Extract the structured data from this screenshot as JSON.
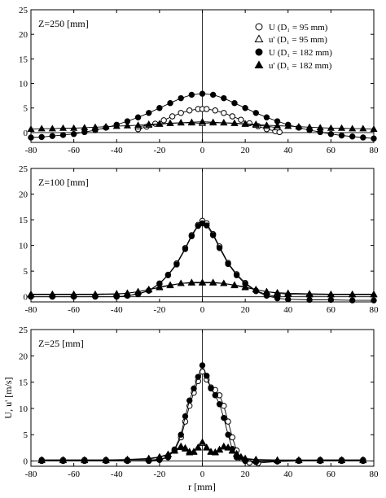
{
  "figure": {
    "shared_xlabel": "r  [mm]",
    "shared_ylabel": "U, u'  [m/s]",
    "legend": [
      {
        "name": "U (D₁ = 95 mm)",
        "marker": "open-circle"
      },
      {
        "name": "u' (D₁ = 95 mm)",
        "marker": "open-triangle"
      },
      {
        "name": "U (D₁ = 182 mm)",
        "marker": "filled-circle"
      },
      {
        "name": "u' (D₁ = 182 mm)",
        "marker": "filled-triangle"
      }
    ],
    "colors": {
      "ink": "#000000",
      "background": "#ffffff"
    }
  },
  "chart_data": [
    {
      "type": "scatter",
      "annotation": "Z=250  [mm]",
      "xlim": [
        -80,
        80
      ],
      "ylim": [
        -2,
        25
      ],
      "xticks": [
        -80,
        -60,
        -40,
        -20,
        0,
        20,
        40,
        60,
        80
      ],
      "yticks": [
        0,
        5,
        10,
        15,
        20,
        25
      ],
      "legend_position": "top-right",
      "series": [
        {
          "name": "U (D₁ = 95 mm)",
          "marker": "open-circle",
          "x": [
            -30,
            -26,
            -22,
            -18,
            -14,
            -10,
            -6,
            -2,
            0,
            2,
            6,
            10,
            14,
            18,
            22,
            26,
            30,
            34,
            36
          ],
          "y": [
            0.7,
            1.2,
            1.8,
            2.5,
            3.3,
            4.0,
            4.5,
            4.8,
            4.8,
            4.8,
            4.5,
            4.0,
            3.3,
            2.6,
            1.9,
            1.3,
            0.7,
            0.3,
            0.1
          ]
        },
        {
          "name": "u' (D₁ = 95 mm)",
          "marker": "open-triangle",
          "x": [
            -30,
            -25,
            -20,
            -15,
            -10,
            -5,
            0,
            5,
            10,
            15,
            20,
            25,
            30,
            35
          ],
          "y": [
            1.2,
            1.5,
            1.7,
            1.9,
            2.0,
            2.0,
            1.9,
            2.0,
            2.0,
            1.9,
            1.7,
            1.5,
            1.3,
            1.0
          ]
        },
        {
          "name": "U (D₁ = 182 mm)",
          "marker": "filled-circle",
          "x": [
            -80,
            -75,
            -70,
            -65,
            -60,
            -55,
            -50,
            -45,
            -40,
            -35,
            -30,
            -25,
            -20,
            -15,
            -10,
            -5,
            0,
            5,
            10,
            15,
            20,
            25,
            30,
            35,
            40,
            45,
            50,
            55,
            60,
            65,
            70,
            75,
            80
          ],
          "y": [
            -1.0,
            -0.9,
            -0.7,
            -0.5,
            -0.3,
            0.1,
            0.5,
            1.0,
            1.6,
            2.3,
            3.1,
            4.0,
            5.0,
            6.0,
            7.0,
            7.7,
            7.9,
            7.7,
            7.0,
            6.0,
            5.0,
            4.0,
            3.1,
            2.3,
            1.6,
            1.0,
            0.5,
            0.1,
            -0.3,
            -0.6,
            -0.8,
            -1.0,
            -1.2
          ]
        },
        {
          "name": "u' (D₁ = 182 mm)",
          "marker": "filled-triangle",
          "x": [
            -80,
            -75,
            -70,
            -65,
            -60,
            -55,
            -50,
            -45,
            -40,
            -35,
            -30,
            -25,
            -20,
            -15,
            -10,
            -5,
            0,
            5,
            10,
            15,
            20,
            25,
            30,
            35,
            40,
            45,
            50,
            55,
            60,
            65,
            70,
            75,
            80
          ],
          "y": [
            0.7,
            0.8,
            0.8,
            0.9,
            0.9,
            1.0,
            1.1,
            1.2,
            1.3,
            1.4,
            1.5,
            1.7,
            1.8,
            1.9,
            2.0,
            2.1,
            2.2,
            2.1,
            2.0,
            1.9,
            1.8,
            1.7,
            1.5,
            1.4,
            1.3,
            1.2,
            1.1,
            1.0,
            0.9,
            0.9,
            0.8,
            0.8,
            0.7
          ]
        }
      ]
    },
    {
      "type": "scatter",
      "annotation": "Z=100  [mm]",
      "xlim": [
        -80,
        80
      ],
      "ylim": [
        -1,
        25
      ],
      "xticks": [
        -80,
        -60,
        -40,
        -20,
        0,
        20,
        40,
        60,
        80
      ],
      "yticks": [
        0,
        5,
        10,
        15,
        20,
        25
      ],
      "series": [
        {
          "name": "U (D₁ = 95 mm)",
          "marker": "open-circle",
          "x": [
            -35,
            -30,
            -25,
            -20,
            -16,
            -12,
            -8,
            -5,
            -2,
            0,
            2,
            5,
            8,
            12,
            16,
            20,
            25,
            30,
            35
          ],
          "y": [
            0.2,
            0.6,
            1.2,
            2.6,
            4.3,
            6.5,
            9.5,
            12.0,
            14.0,
            14.8,
            14.3,
            12.2,
            9.8,
            6.6,
            4.4,
            2.7,
            1.2,
            0.4,
            0.0
          ]
        },
        {
          "name": "u' (D₁ = 95 mm)",
          "marker": "open-triangle",
          "x": [
            -80,
            -70,
            -60,
            -50,
            -40,
            -35,
            -30,
            -25,
            -20,
            -15,
            -10,
            -5,
            0,
            5,
            10,
            15,
            20,
            25,
            30,
            35,
            40,
            50,
            60,
            70,
            80
          ],
          "y": [
            0.5,
            0.5,
            0.5,
            0.5,
            0.6,
            0.7,
            1.0,
            1.4,
            1.8,
            2.2,
            2.6,
            2.8,
            2.8,
            2.8,
            2.6,
            2.2,
            1.8,
            1.4,
            1.0,
            0.8,
            0.7,
            0.6,
            0.5,
            0.5,
            0.5
          ]
        },
        {
          "name": "U (D₁ = 182 mm)",
          "marker": "filled-circle",
          "x": [
            -80,
            -70,
            -60,
            -50,
            -40,
            -35,
            -30,
            -25,
            -20,
            -16,
            -12,
            -8,
            -5,
            -2,
            0,
            2,
            5,
            8,
            12,
            16,
            20,
            25,
            30,
            35,
            40,
            50,
            60,
            70,
            80
          ],
          "y": [
            0.0,
            0.0,
            0.0,
            0.0,
            0.0,
            0.2,
            0.5,
            1.2,
            2.5,
            4.2,
            6.3,
            9.3,
            11.8,
            13.8,
            14.3,
            13.9,
            12.0,
            9.5,
            6.4,
            4.2,
            2.5,
            1.1,
            0.2,
            -0.3,
            -0.5,
            -0.6,
            -0.6,
            -0.7,
            -0.7
          ]
        },
        {
          "name": "u' (D₁ = 182 mm)",
          "marker": "filled-triangle",
          "x": [
            -80,
            -70,
            -60,
            -50,
            -40,
            -35,
            -30,
            -25,
            -20,
            -15,
            -10,
            -5,
            0,
            5,
            10,
            15,
            20,
            25,
            30,
            35,
            40,
            50,
            60,
            70,
            80
          ],
          "y": [
            0.4,
            0.4,
            0.4,
            0.4,
            0.5,
            0.7,
            1.0,
            1.4,
            1.9,
            2.3,
            2.6,
            2.7,
            2.7,
            2.7,
            2.6,
            2.3,
            1.9,
            1.4,
            1.0,
            0.7,
            0.5,
            0.4,
            0.4,
            0.4,
            0.4
          ]
        }
      ]
    },
    {
      "type": "scatter",
      "annotation": "Z=25  [mm]",
      "xlabel": "r  [mm]",
      "ylabel": "U, u'  [m/s]",
      "xlim": [
        -80,
        80
      ],
      "ylim": [
        -1,
        25
      ],
      "xticks": [
        -80,
        -60,
        -40,
        -20,
        0,
        20,
        40,
        60,
        80
      ],
      "yticks": [
        0,
        5,
        10,
        15,
        20,
        25
      ],
      "series": [
        {
          "name": "U (D₁ = 95 mm)",
          "marker": "open-circle",
          "x": [
            -75,
            -65,
            -55,
            -45,
            -35,
            -25,
            -20,
            -16,
            -13,
            -10,
            -8,
            -6,
            -4,
            -2,
            0,
            2,
            4,
            6,
            8,
            10,
            12,
            14,
            16,
            18,
            22,
            26,
            35,
            45,
            55,
            65,
            75
          ],
          "y": [
            0.2,
            0.2,
            0.2,
            0.2,
            0.2,
            0.2,
            0.3,
            0.8,
            2.0,
            4.5,
            7.5,
            10.5,
            13.0,
            15.2,
            17.0,
            15.5,
            14.0,
            13.5,
            12.5,
            10.5,
            7.5,
            4.5,
            2.0,
            0.5,
            -0.3,
            -0.4,
            -0.1,
            0.1,
            0.2,
            0.2,
            0.2
          ]
        },
        {
          "name": "u' (D₁ = 95 mm)",
          "marker": "open-triangle",
          "x": [
            -75,
            -65,
            -55,
            -45,
            -35,
            -25,
            -20,
            -16,
            -13,
            -10,
            -8,
            -6,
            -4,
            -2,
            0,
            2,
            4,
            6,
            8,
            10,
            12,
            14,
            16,
            18,
            20,
            25,
            35,
            45,
            55,
            65,
            75
          ],
          "y": [
            0.2,
            0.2,
            0.2,
            0.2,
            0.3,
            0.5,
            0.8,
            1.3,
            2.0,
            2.8,
            2.5,
            1.8,
            1.8,
            2.6,
            3.4,
            2.6,
            1.8,
            1.7,
            2.2,
            2.8,
            2.6,
            2.0,
            1.4,
            0.8,
            0.5,
            0.3,
            0.2,
            0.2,
            0.2,
            0.2,
            0.2
          ]
        },
        {
          "name": "U (D₁ = 182 mm)",
          "marker": "filled-circle",
          "x": [
            -75,
            -65,
            -55,
            -45,
            -35,
            -25,
            -20,
            -16,
            -13,
            -10,
            -8,
            -6,
            -4,
            -2,
            0,
            2,
            4,
            6,
            8,
            10,
            12,
            14,
            16,
            20,
            25,
            35,
            45,
            55,
            65,
            75
          ],
          "y": [
            0.0,
            0.0,
            0.0,
            0.0,
            0.0,
            0.0,
            0.2,
            0.7,
            2.2,
            5.0,
            8.5,
            11.5,
            13.8,
            16.0,
            18.2,
            16.2,
            13.8,
            12.5,
            10.8,
            8.2,
            5.0,
            2.3,
            0.7,
            0.0,
            -0.2,
            -0.1,
            0.0,
            0.0,
            0.0,
            0.0
          ]
        },
        {
          "name": "u' (D₁ = 182 mm)",
          "marker": "filled-triangle",
          "x": [
            -75,
            -65,
            -55,
            -45,
            -35,
            -25,
            -20,
            -16,
            -13,
            -10,
            -8,
            -6,
            -4,
            -2,
            0,
            2,
            4,
            6,
            8,
            10,
            12,
            14,
            16,
            18,
            20,
            25,
            35,
            45,
            55,
            65,
            75
          ],
          "y": [
            0.1,
            0.1,
            0.1,
            0.1,
            0.2,
            0.4,
            0.7,
            1.2,
            1.9,
            2.6,
            2.3,
            1.6,
            1.7,
            2.5,
            3.6,
            2.5,
            1.7,
            1.6,
            2.1,
            2.7,
            2.5,
            1.9,
            1.3,
            0.7,
            0.4,
            0.2,
            0.1,
            0.1,
            0.1,
            0.1,
            0.1
          ]
        }
      ]
    }
  ]
}
